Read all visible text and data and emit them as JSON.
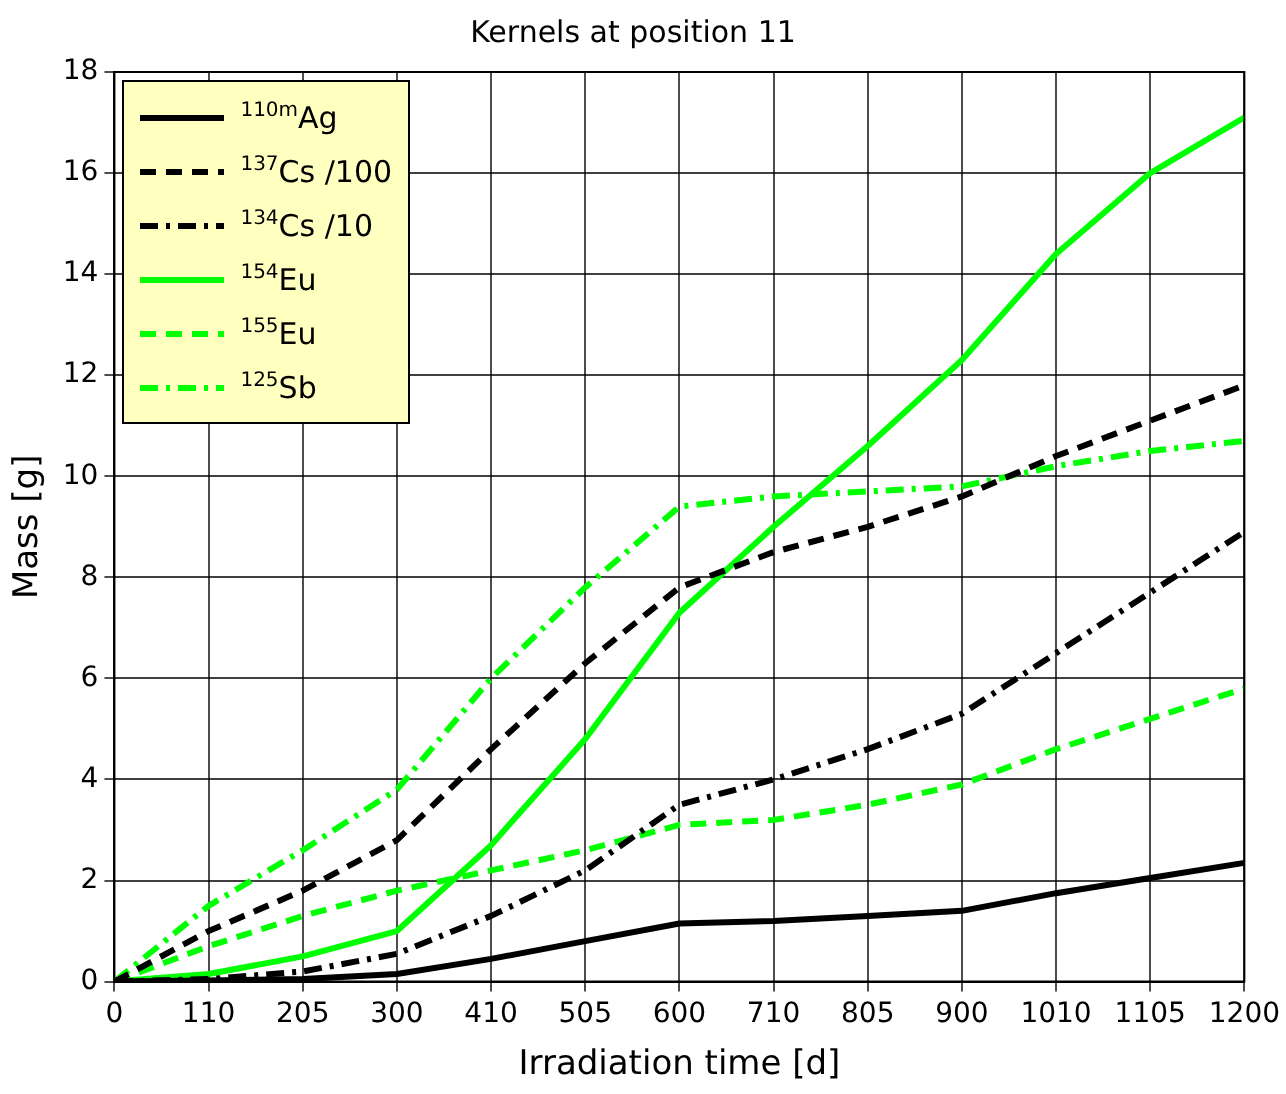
{
  "chart_data": {
    "type": "line",
    "title": "Kernels at position 11",
    "xlabel": "Irradiation time [d]",
    "ylabel": "Mass [g]",
    "categories": [
      "0",
      "110",
      "205",
      "300",
      "410",
      "505",
      "600",
      "710",
      "805",
      "900",
      "1010",
      "1105",
      "1200"
    ],
    "series": [
      {
        "name": "$^{110m}$Ag",
        "color": "#000000",
        "line_style": "solid",
        "values": [
          0,
          0.02,
          0.05,
          0.15,
          0.45,
          0.8,
          1.15,
          1.2,
          1.3,
          1.4,
          1.75,
          2.05,
          2.35
        ]
      },
      {
        "name": "$^{137}$Cs /100",
        "color": "#000000",
        "line_style": "dashed",
        "values": [
          0,
          1.0,
          1.8,
          2.8,
          4.6,
          6.3,
          7.8,
          8.5,
          9.0,
          9.6,
          10.4,
          11.1,
          11.8
        ]
      },
      {
        "name": "$^{134}$Cs /10",
        "color": "#000000",
        "line_style": "dashdot",
        "values": [
          0,
          0.05,
          0.2,
          0.55,
          1.3,
          2.2,
          3.5,
          4.0,
          4.6,
          5.3,
          6.5,
          7.7,
          8.9
        ]
      },
      {
        "name": "$^{154}$Eu",
        "color": "#00ff00",
        "line_style": "solid",
        "values": [
          0,
          0.15,
          0.5,
          1.0,
          2.7,
          4.8,
          7.3,
          9.0,
          10.6,
          12.3,
          14.4,
          16.0,
          17.1
        ]
      },
      {
        "name": "$^{155}$Eu",
        "color": "#00ff00",
        "line_style": "dashed",
        "values": [
          0,
          0.7,
          1.3,
          1.8,
          2.2,
          2.6,
          3.1,
          3.2,
          3.5,
          3.9,
          4.6,
          5.2,
          5.8
        ]
      },
      {
        "name": "$^{125}$Sb",
        "color": "#00ff00",
        "line_style": "dashdot",
        "values": [
          0,
          1.5,
          2.6,
          3.8,
          6.0,
          7.8,
          9.4,
          9.6,
          9.7,
          9.8,
          10.2,
          10.5,
          10.7
        ]
      }
    ],
    "ylim": [
      0,
      18
    ],
    "yticks": [
      0,
      2,
      4,
      6,
      8,
      10,
      12,
      14,
      16,
      18
    ],
    "grid": true,
    "legend": "top left",
    "marker": "none"
  }
}
